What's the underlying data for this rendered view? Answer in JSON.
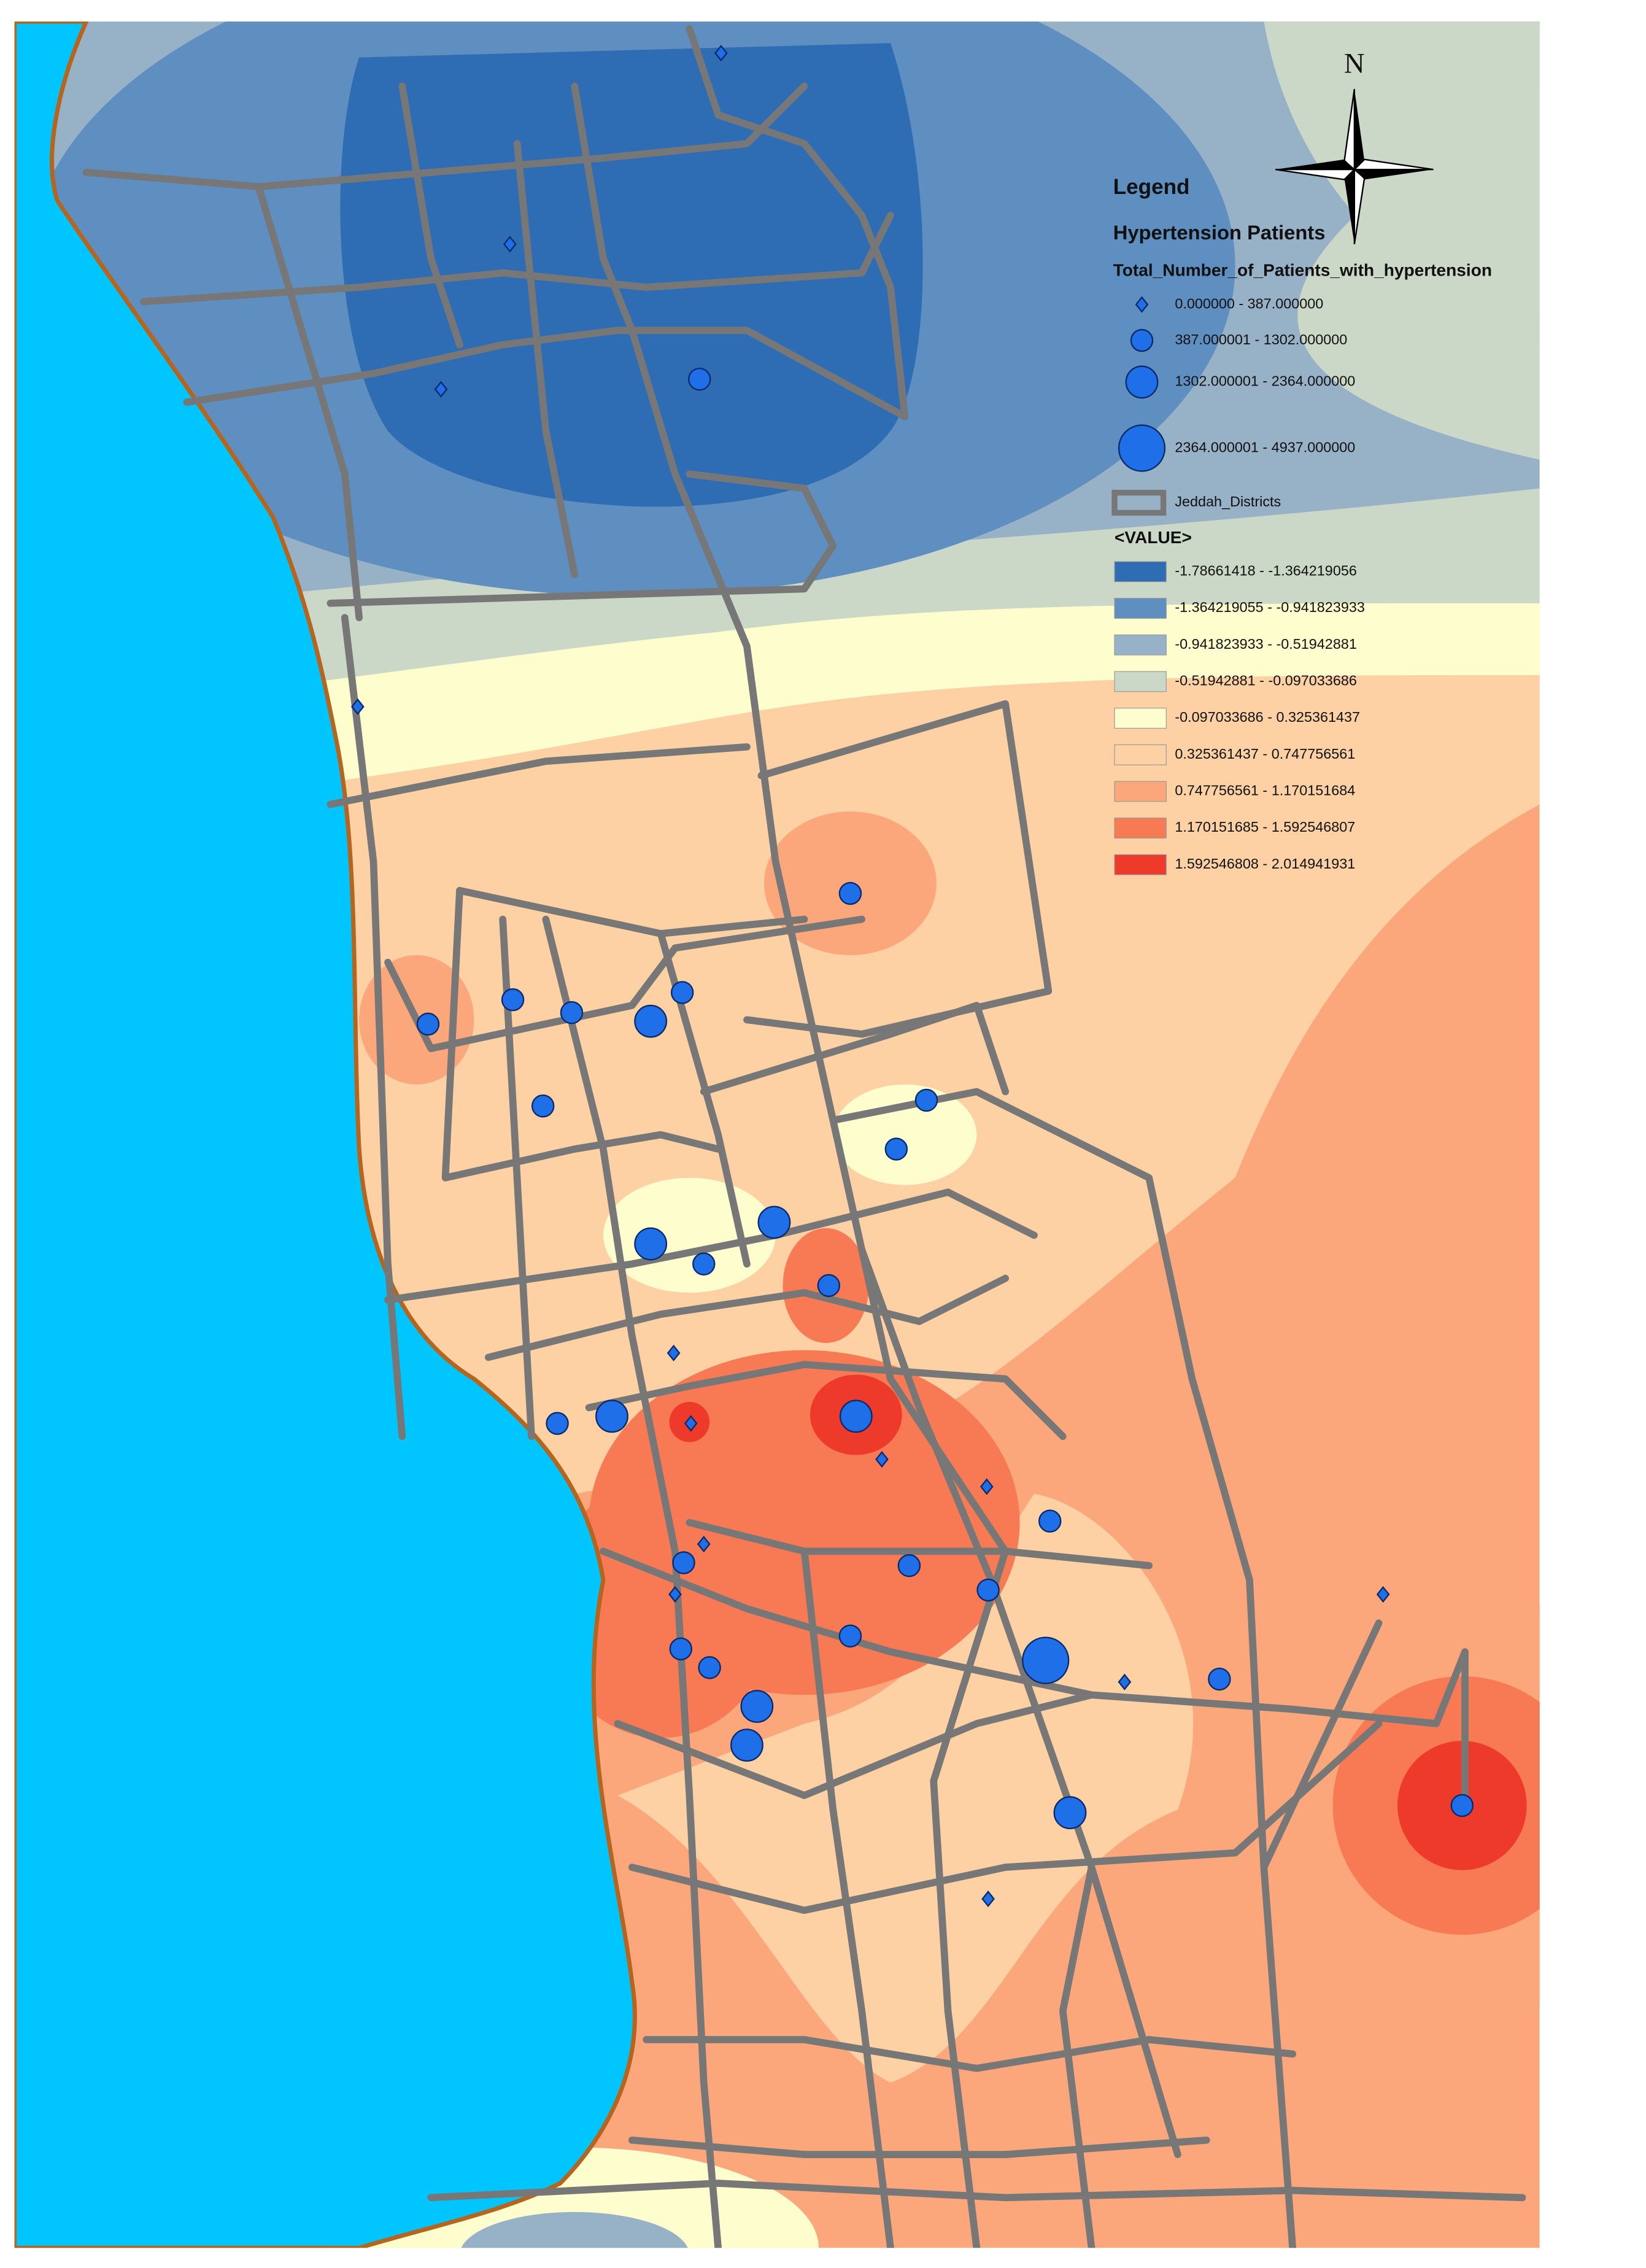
{
  "north_arrow": "N",
  "legend": {
    "title": "Legend",
    "layer_title": "Hypertension Patients",
    "field": "Total_Number_of_Patients_with_hypertension",
    "size_classes": [
      "0.000000 - 387.000000",
      "387.000001 - 1302.000000",
      "1302.000001 - 2364.000000",
      "2364.000001 - 4937.000000"
    ],
    "districts_label": "Jeddah_Districts",
    "raster_label": "<VALUE>",
    "value_classes": [
      {
        "label": "-1.78661418 - -1.364219056",
        "color": "#2e6db4"
      },
      {
        "label": "-1.364219055 - -0.941823933",
        "color": "#5e8fc0"
      },
      {
        "label": "-0.941823933 - -0.51942881",
        "color": "#97b1c6"
      },
      {
        "label": "-0.51942881 - -0.097033686",
        "color": "#cbd7c7"
      },
      {
        "label": "-0.097033686 - 0.325361437",
        "color": "#fdfdcd"
      },
      {
        "label": "0.325361437 - 0.747756561",
        "color": "#fdd1a3"
      },
      {
        "label": "0.747756561 - 1.170151684",
        "color": "#fba77b"
      },
      {
        "label": "1.170151685 - 1.592546807",
        "color": "#f77a55"
      },
      {
        "label": "1.592546808 - 2.014941931",
        "color": "#ee3a2b"
      }
    ]
  }
}
